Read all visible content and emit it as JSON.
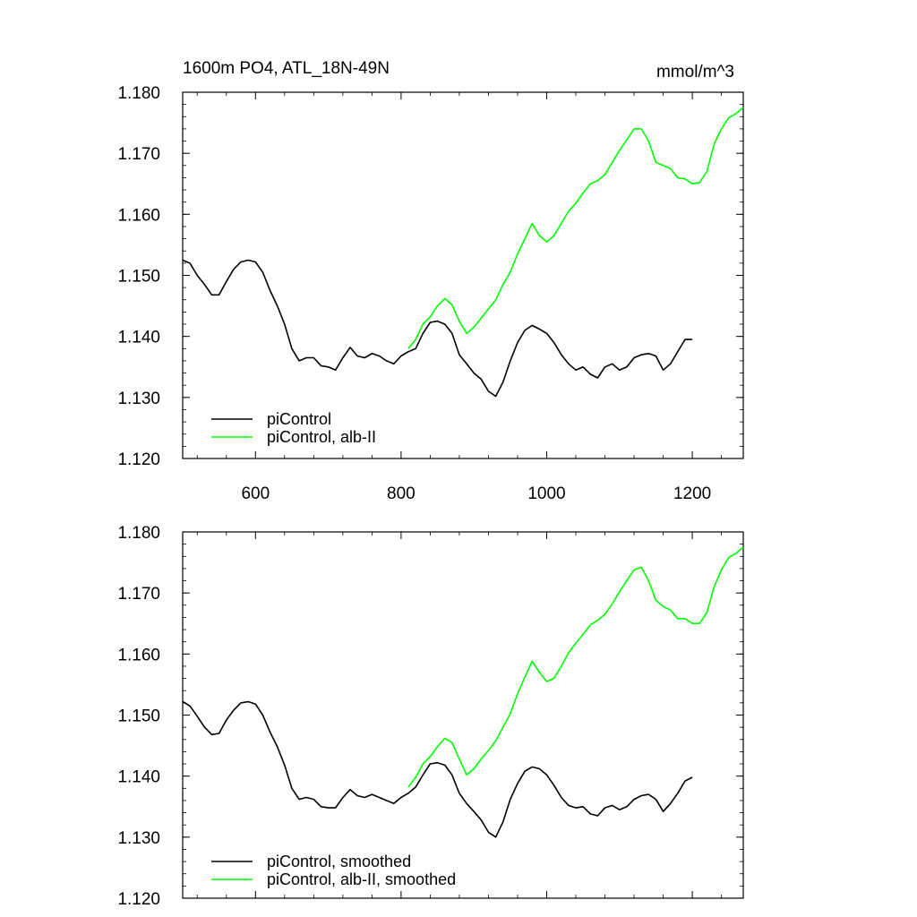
{
  "figure": {
    "title": "1600m PO4, ATL_18N-49N",
    "units": "mmol/m^3"
  },
  "chart_data": [
    {
      "type": "line",
      "title": "1600m PO4, ATL_18N-49N",
      "unit_label": "mmol/m^3",
      "xlim": [
        500,
        1270
      ],
      "ylim": [
        1.12,
        1.18
      ],
      "x_ticks": [
        600,
        800,
        1000,
        1200
      ],
      "x_tick_labels": [
        "600",
        "800",
        "1000",
        "1200"
      ],
      "y_ticks": [
        1.12,
        1.13,
        1.14,
        1.15,
        1.16,
        1.17,
        1.18
      ],
      "y_tick_labels": [
        "1.120",
        "1.130",
        "1.140",
        "1.150",
        "1.160",
        "1.170",
        "1.180"
      ],
      "grid": false,
      "legend_position": "bottom-left",
      "series": [
        {
          "name": "piControl",
          "color": "#000000",
          "x": [
            500,
            510,
            520,
            530,
            540,
            550,
            560,
            570,
            580,
            590,
            600,
            610,
            620,
            630,
            640,
            650,
            660,
            670,
            680,
            690,
            700,
            710,
            720,
            730,
            740,
            750,
            760,
            770,
            780,
            790,
            800,
            810,
            820,
            830,
            840,
            850,
            860,
            870,
            880,
            890,
            900,
            910,
            920,
            930,
            940,
            950,
            960,
            970,
            980,
            990,
            1000,
            1010,
            1020,
            1030,
            1040,
            1050,
            1060,
            1070,
            1080,
            1090,
            1100,
            1110,
            1120,
            1130,
            1140,
            1150,
            1160,
            1170,
            1180,
            1190,
            1200
          ],
          "y": [
            1.1525,
            1.152,
            1.15,
            1.1485,
            1.1468,
            1.1468,
            1.149,
            1.151,
            1.1522,
            1.1525,
            1.1522,
            1.1505,
            1.1475,
            1.145,
            1.142,
            1.138,
            1.136,
            1.1365,
            1.1365,
            1.1352,
            1.135,
            1.1345,
            1.1365,
            1.1382,
            1.1368,
            1.1365,
            1.1372,
            1.1368,
            1.136,
            1.1355,
            1.1368,
            1.1375,
            1.138,
            1.1405,
            1.1423,
            1.1425,
            1.142,
            1.1405,
            1.137,
            1.1355,
            1.134,
            1.133,
            1.131,
            1.1302,
            1.1325,
            1.136,
            1.139,
            1.141,
            1.1418,
            1.1412,
            1.1405,
            1.139,
            1.137,
            1.1355,
            1.1345,
            1.135,
            1.1338,
            1.1332,
            1.135,
            1.1355,
            1.1345,
            1.135,
            1.1365,
            1.137,
            1.1372,
            1.1368,
            1.1345,
            1.1355,
            1.1375,
            1.1395,
            1.1395
          ]
        },
        {
          "name": "piControl, alb-II",
          "color": "#00ff00",
          "x": [
            810,
            820,
            830,
            840,
            850,
            860,
            870,
            880,
            890,
            900,
            910,
            920,
            930,
            940,
            950,
            960,
            970,
            980,
            990,
            1000,
            1010,
            1020,
            1030,
            1040,
            1050,
            1060,
            1070,
            1080,
            1090,
            1100,
            1110,
            1120,
            1130,
            1140,
            1150,
            1160,
            1170,
            1180,
            1190,
            1200,
            1210,
            1220,
            1230,
            1240,
            1250,
            1260,
            1270
          ],
          "y": [
            1.138,
            1.1395,
            1.142,
            1.1432,
            1.145,
            1.1462,
            1.1452,
            1.1425,
            1.1405,
            1.1415,
            1.143,
            1.1445,
            1.146,
            1.1485,
            1.1505,
            1.1535,
            1.156,
            1.1585,
            1.1565,
            1.1555,
            1.1565,
            1.1585,
            1.1605,
            1.1618,
            1.1635,
            1.165,
            1.1655,
            1.1665,
            1.1685,
            1.1705,
            1.1722,
            1.174,
            1.174,
            1.172,
            1.1685,
            1.168,
            1.1675,
            1.166,
            1.1658,
            1.165,
            1.1652,
            1.167,
            1.1715,
            1.174,
            1.1758,
            1.1765,
            1.1775
          ]
        }
      ]
    },
    {
      "type": "line",
      "title": "",
      "xlim": [
        500,
        1270
      ],
      "ylim": [
        1.12,
        1.18
      ],
      "x_ticks": [
        600,
        800,
        1000,
        1200
      ],
      "x_tick_labels": [],
      "y_ticks": [
        1.12,
        1.13,
        1.14,
        1.15,
        1.16,
        1.17,
        1.18
      ],
      "y_tick_labels": [
        "1.120",
        "1.130",
        "1.140",
        "1.150",
        "1.160",
        "1.170",
        "1.180"
      ],
      "grid": false,
      "legend_position": "bottom-left",
      "series": [
        {
          "name": "piControl, smoothed",
          "color": "#000000",
          "x": [
            500,
            510,
            520,
            530,
            540,
            550,
            560,
            570,
            580,
            590,
            600,
            610,
            620,
            630,
            640,
            650,
            660,
            670,
            680,
            690,
            700,
            710,
            720,
            730,
            740,
            750,
            760,
            770,
            780,
            790,
            800,
            810,
            820,
            830,
            840,
            850,
            860,
            870,
            880,
            890,
            900,
            910,
            920,
            930,
            940,
            950,
            960,
            970,
            980,
            990,
            1000,
            1010,
            1020,
            1030,
            1040,
            1050,
            1060,
            1070,
            1080,
            1090,
            1100,
            1110,
            1120,
            1130,
            1140,
            1150,
            1160,
            1170,
            1180,
            1190,
            1200
          ],
          "y": [
            1.1522,
            1.1515,
            1.1498,
            1.148,
            1.1468,
            1.147,
            1.1492,
            1.1508,
            1.152,
            1.1522,
            1.1518,
            1.15,
            1.1472,
            1.1448,
            1.1418,
            1.138,
            1.1362,
            1.1365,
            1.1362,
            1.135,
            1.1348,
            1.1348,
            1.1365,
            1.1378,
            1.1368,
            1.1365,
            1.137,
            1.1365,
            1.136,
            1.1355,
            1.1365,
            1.1372,
            1.1382,
            1.1402,
            1.142,
            1.1422,
            1.1418,
            1.1402,
            1.1372,
            1.1355,
            1.1342,
            1.1328,
            1.1308,
            1.13,
            1.1325,
            1.1362,
            1.1388,
            1.1408,
            1.1415,
            1.1412,
            1.1402,
            1.1385,
            1.1365,
            1.1352,
            1.1348,
            1.135,
            1.1338,
            1.1335,
            1.1348,
            1.1352,
            1.1345,
            1.135,
            1.1362,
            1.1368,
            1.137,
            1.1362,
            1.1342,
            1.1355,
            1.1372,
            1.1392,
            1.1398
          ]
        },
        {
          "name": "piControl, alb-II, smoothed",
          "color": "#00ff00",
          "x": [
            810,
            820,
            830,
            840,
            850,
            860,
            870,
            880,
            890,
            900,
            910,
            920,
            930,
            940,
            950,
            960,
            970,
            980,
            990,
            1000,
            1010,
            1020,
            1030,
            1040,
            1050,
            1060,
            1070,
            1080,
            1090,
            1100,
            1110,
            1120,
            1130,
            1140,
            1150,
            1160,
            1170,
            1180,
            1190,
            1200,
            1210,
            1220,
            1230,
            1240,
            1250,
            1260,
            1270
          ],
          "y": [
            1.1382,
            1.1398,
            1.142,
            1.1432,
            1.1448,
            1.1462,
            1.1455,
            1.1428,
            1.1402,
            1.1412,
            1.1428,
            1.1442,
            1.1458,
            1.148,
            1.1502,
            1.1535,
            1.1562,
            1.1588,
            1.157,
            1.1555,
            1.156,
            1.158,
            1.1602,
            1.1618,
            1.1632,
            1.1648,
            1.1655,
            1.1665,
            1.1682,
            1.1702,
            1.172,
            1.1738,
            1.1742,
            1.172,
            1.1688,
            1.1678,
            1.1672,
            1.1658,
            1.1658,
            1.165,
            1.165,
            1.1668,
            1.171,
            1.1738,
            1.1758,
            1.1765,
            1.1775
          ]
        }
      ]
    }
  ]
}
